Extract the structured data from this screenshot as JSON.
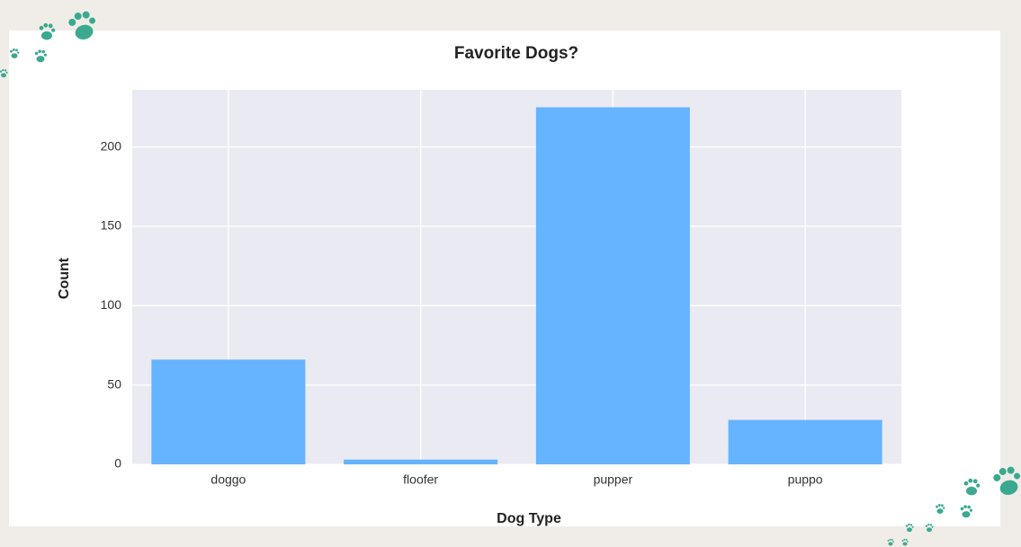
{
  "chart_data": {
    "type": "bar",
    "title": "Favorite Dogs?",
    "x_label": "Dog Type",
    "y_label": "Count",
    "categories": [
      "doggo",
      "floofer",
      "pupper",
      "puppo"
    ],
    "values": [
      66,
      3,
      225,
      28
    ],
    "color": "#66b3ff",
    "ylim": [
      0,
      236
    ],
    "yticks": [
      0,
      50,
      100,
      150,
      200
    ],
    "grid": true
  }
}
